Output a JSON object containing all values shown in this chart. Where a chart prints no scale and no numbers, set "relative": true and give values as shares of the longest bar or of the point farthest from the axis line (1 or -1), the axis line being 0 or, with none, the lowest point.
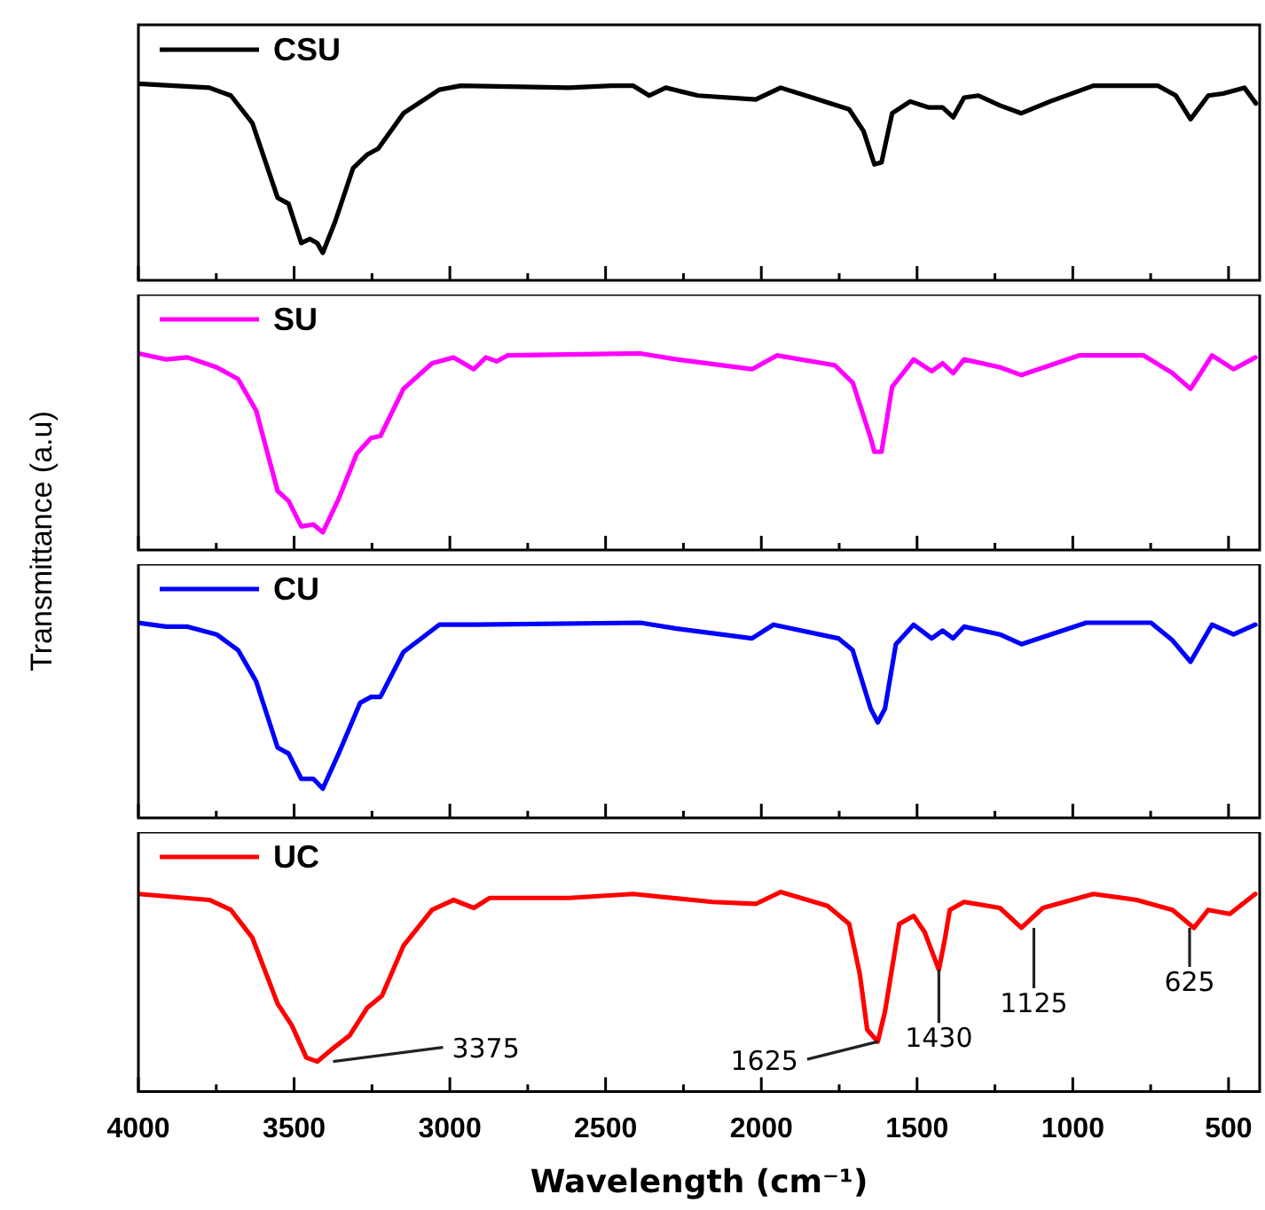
{
  "chart_data": [
    {
      "type": "line",
      "relative": true,
      "ylabel": "Transmittance (a.u)",
      "legend": "top left",
      "tick_labels": false,
      "xlim": [
        4000,
        400
      ],
      "xticks": [
        4000,
        {
          "value": 3750,
          "label": null
        },
        3500,
        {
          "value": 3250,
          "label": null
        },
        3000,
        {
          "value": 2750,
          "label": null
        },
        2500,
        {
          "value": 2250,
          "label": null
        },
        2000,
        {
          "value": 1750,
          "label": null
        },
        1500,
        {
          "value": 1250,
          "label": null
        },
        1000,
        {
          "value": 750,
          "label": null
        },
        500
      ],
      "x": [
        4000,
        3772,
        3703,
        3634,
        3553,
        3518,
        3477,
        3449,
        3426,
        3408,
        3368,
        3311,
        3265,
        3230,
        3149,
        3034,
        2965,
        2618,
        2480,
        2411,
        2360,
        2307,
        2203,
        2018,
        1938,
        1857,
        1718,
        1672,
        1637,
        1614,
        1580,
        1522,
        1464,
        1418,
        1384,
        1349,
        1303,
        1234,
        1165,
        1073,
        934,
        726,
        669,
        622,
        565,
        518,
        449,
        412
      ],
      "series": [
        {
          "name": "CSU",
          "color": "#000000",
          "values": [
            1,
            0.98,
            0.94,
            0.8,
            0.42,
            0.39,
            0.19,
            0.21,
            0.19,
            0.14,
            0.3,
            0.57,
            0.64,
            0.67,
            0.85,
            0.97,
            0.99,
            0.98,
            0.99,
            0.99,
            0.94,
            0.98,
            0.94,
            0.92,
            0.98,
            0.94,
            0.87,
            0.76,
            0.59,
            0.6,
            0.85,
            0.91,
            0.88,
            0.88,
            0.83,
            0.93,
            0.94,
            0.89,
            0.85,
            0.91,
            0.99,
            0.99,
            0.94,
            0.82,
            0.94,
            0.95,
            0.98,
            0.9
          ]
        }
      ]
    },
    {
      "type": "line",
      "relative": true,
      "legend": "top left",
      "tick_labels": false,
      "xlim": [
        4000,
        400
      ],
      "xticks": [
        4000,
        {
          "value": 3750,
          "label": null
        },
        3500,
        {
          "value": 3250,
          "label": null
        },
        3000,
        {
          "value": 2750,
          "label": null
        },
        2500,
        {
          "value": 2250,
          "label": null
        },
        2000,
        {
          "value": 1750,
          "label": null
        },
        1500,
        {
          "value": 1250,
          "label": null
        },
        1000,
        {
          "value": 750,
          "label": null
        },
        500
      ],
      "x": [
        4000,
        3911,
        3842,
        3749,
        3680,
        3622,
        3553,
        3518,
        3477,
        3438,
        3408,
        3357,
        3299,
        3253,
        3223,
        3149,
        3057,
        2988,
        2923,
        2884,
        2849,
        2815,
        2388,
        2272,
        2030,
        1950,
        1764,
        1706,
        1649,
        1637,
        1614,
        1580,
        1511,
        1453,
        1418,
        1384,
        1349,
        1234,
        1165,
        980,
        772,
        680,
        622,
        553,
        484,
        414
      ],
      "series": [
        {
          "name": "SU",
          "color": "#ff00ff",
          "values": [
            1,
            0.97,
            0.98,
            0.93,
            0.87,
            0.71,
            0.3,
            0.25,
            0.12,
            0.13,
            0.09,
            0.26,
            0.49,
            0.57,
            0.58,
            0.82,
            0.95,
            0.98,
            0.92,
            0.98,
            0.96,
            0.99,
            1,
            0.97,
            0.92,
            0.99,
            0.94,
            0.85,
            0.57,
            0.5,
            0.5,
            0.83,
            0.97,
            0.91,
            0.95,
            0.9,
            0.97,
            0.93,
            0.89,
            0.99,
            0.99,
            0.9,
            0.82,
            0.99,
            0.92,
            0.98
          ]
        }
      ]
    },
    {
      "type": "line",
      "relative": true,
      "legend": "top left",
      "tick_labels": false,
      "xlim": [
        4000,
        400
      ],
      "xticks": [
        4000,
        {
          "value": 3750,
          "label": null
        },
        3500,
        {
          "value": 3250,
          "label": null
        },
        3000,
        {
          "value": 2750,
          "label": null
        },
        2500,
        {
          "value": 2250,
          "label": null
        },
        2000,
        {
          "value": 1750,
          "label": null
        },
        1500,
        {
          "value": 1250,
          "label": null
        },
        1000,
        {
          "value": 750,
          "label": null
        },
        500
      ],
      "x": [
        4000,
        3911,
        3842,
        3749,
        3680,
        3622,
        3553,
        3518,
        3477,
        3438,
        3408,
        3357,
        3288,
        3253,
        3223,
        3149,
        3034,
        2918,
        2388,
        2272,
        2030,
        1961,
        1753,
        1707,
        1649,
        1626,
        1603,
        1568,
        1511,
        1453,
        1418,
        1384,
        1349,
        1234,
        1165,
        957,
        749,
        680,
        622,
        553,
        484,
        414
      ],
      "series": [
        {
          "name": "CU",
          "color": "#0000ff",
          "values": [
            1,
            0.98,
            0.98,
            0.94,
            0.86,
            0.7,
            0.36,
            0.33,
            0.2,
            0.2,
            0.15,
            0.33,
            0.59,
            0.62,
            0.62,
            0.85,
            0.99,
            0.99,
            1,
            0.97,
            0.92,
            0.99,
            0.92,
            0.86,
            0.56,
            0.49,
            0.56,
            0.89,
            0.99,
            0.92,
            0.96,
            0.92,
            0.98,
            0.94,
            0.89,
            1,
            1,
            0.91,
            0.8,
            0.99,
            0.94,
            0.99
          ]
        }
      ]
    },
    {
      "type": "line",
      "relative": true,
      "xlabel": "Wavelength (cm⁻¹)",
      "legend": "top left",
      "tick_labels": "x",
      "xlim": [
        4000,
        400
      ],
      "xticks": [
        4000,
        {
          "value": 3750,
          "label": null
        },
        3500,
        {
          "value": 3250,
          "label": null
        },
        3000,
        {
          "value": 2750,
          "label": null
        },
        2500,
        {
          "value": 2250,
          "label": null
        },
        2000,
        {
          "value": 1750,
          "label": null
        },
        1500,
        {
          "value": 1250,
          "label": null
        },
        1000,
        {
          "value": 750,
          "label": null
        },
        500
      ],
      "x": [
        4000,
        3772,
        3703,
        3634,
        3553,
        3507,
        3461,
        3426,
        3380,
        3322,
        3265,
        3218,
        3149,
        3057,
        2988,
        2923,
        2872,
        2618,
        2411,
        2157,
        2018,
        1938,
        1787,
        1718,
        1684,
        1660,
        1626,
        1603,
        1557,
        1511,
        1476,
        1430,
        1410,
        1395,
        1349,
        1234,
        1165,
        1096,
        934,
        795,
        680,
        611,
        565,
        496,
        414
      ],
      "series": [
        {
          "name": "UC",
          "color": "#ff0000",
          "values": [
            0.99,
            0.96,
            0.91,
            0.77,
            0.44,
            0.33,
            0.17,
            0.15,
            0.21,
            0.28,
            0.42,
            0.48,
            0.73,
            0.91,
            0.96,
            0.92,
            0.97,
            0.97,
            0.99,
            0.95,
            0.94,
            1,
            0.93,
            0.84,
            0.59,
            0.31,
            0.25,
            0.4,
            0.84,
            0.88,
            0.8,
            0.61,
            0.77,
            0.91,
            0.95,
            0.92,
            0.82,
            0.92,
            0.99,
            0.96,
            0.91,
            0.82,
            0.91,
            0.89,
            0.99
          ]
        }
      ],
      "annotations": [
        {
          "text": "3375",
          "x": 3375,
          "y": 0.15
        },
        {
          "text": "1625",
          "x": 1625,
          "y": 0.25
        },
        {
          "text": "1430",
          "x": 1430,
          "y": 0.61
        },
        {
          "text": "1125",
          "x": 1125,
          "y": 0.82
        },
        {
          "text": "625",
          "x": 625,
          "y": 0.82
        }
      ]
    }
  ]
}
